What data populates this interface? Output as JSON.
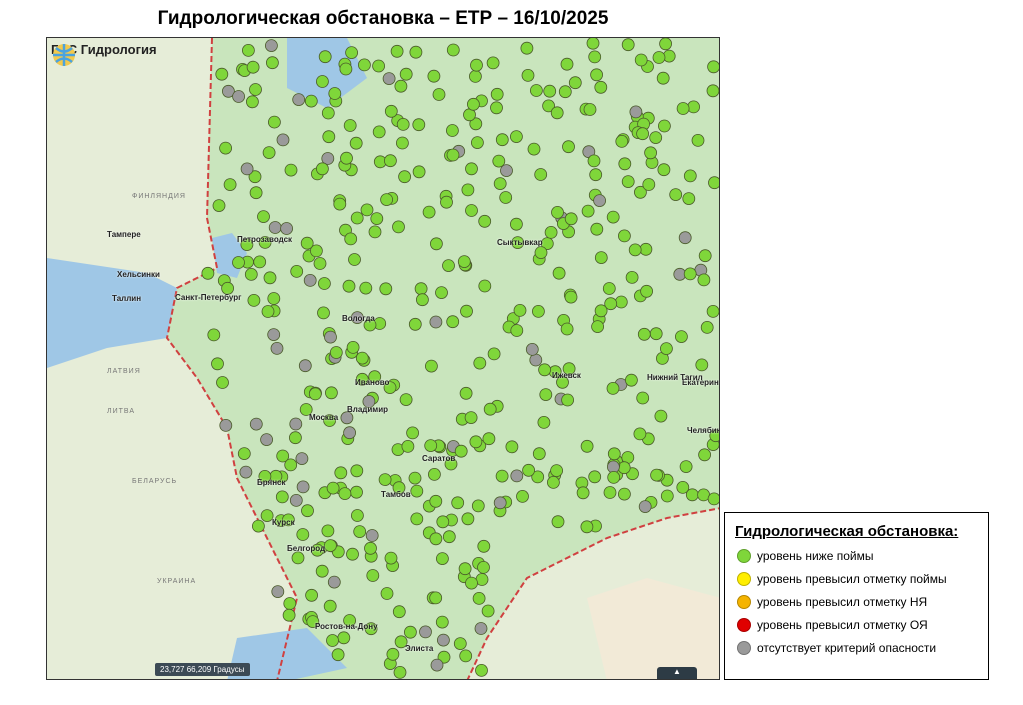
{
  "title": "Гидрологическая обстановка – ЕТР – 16/10/2025",
  "map": {
    "logo_text": "ГИС Гидрология",
    "coords_readout": "23,727 66,209 Градусы",
    "cities": [
      "Петрозаводск",
      "Сыктывкар",
      "Санкт-Петербург",
      "Вологда",
      "Иваново",
      "Владимир",
      "Москва",
      "Саратов",
      "Тамбов",
      "Брянск",
      "Курск",
      "Белгород",
      "Ростов-на-Дону",
      "Элиста",
      "Челябинск",
      "Екатеринбург",
      "Нижний Тагил",
      "Ижевск",
      "Хельсинки",
      "Таллин",
      "Тампере"
    ],
    "countries": [
      "ФИНЛЯНДИЯ",
      "ЛАТВИЯ",
      "ЛИТВА",
      "БЕЛАРУСЬ",
      "УКРАИНА"
    ]
  },
  "legend": {
    "title": "Гидрологическая обстановка:",
    "items": [
      {
        "label": "уровень ниже поймы",
        "color": "#7fd63a"
      },
      {
        "label": "уровень превысил отметку поймы",
        "color": "#ffee00"
      },
      {
        "label": "уровень превысил отметку НЯ",
        "color": "#f5b400"
      },
      {
        "label": "уровень превысил отметку ОЯ",
        "color": "#e00000"
      },
      {
        "label": "отсутствует критерий опасности",
        "color": "#9a9a9a"
      }
    ]
  }
}
